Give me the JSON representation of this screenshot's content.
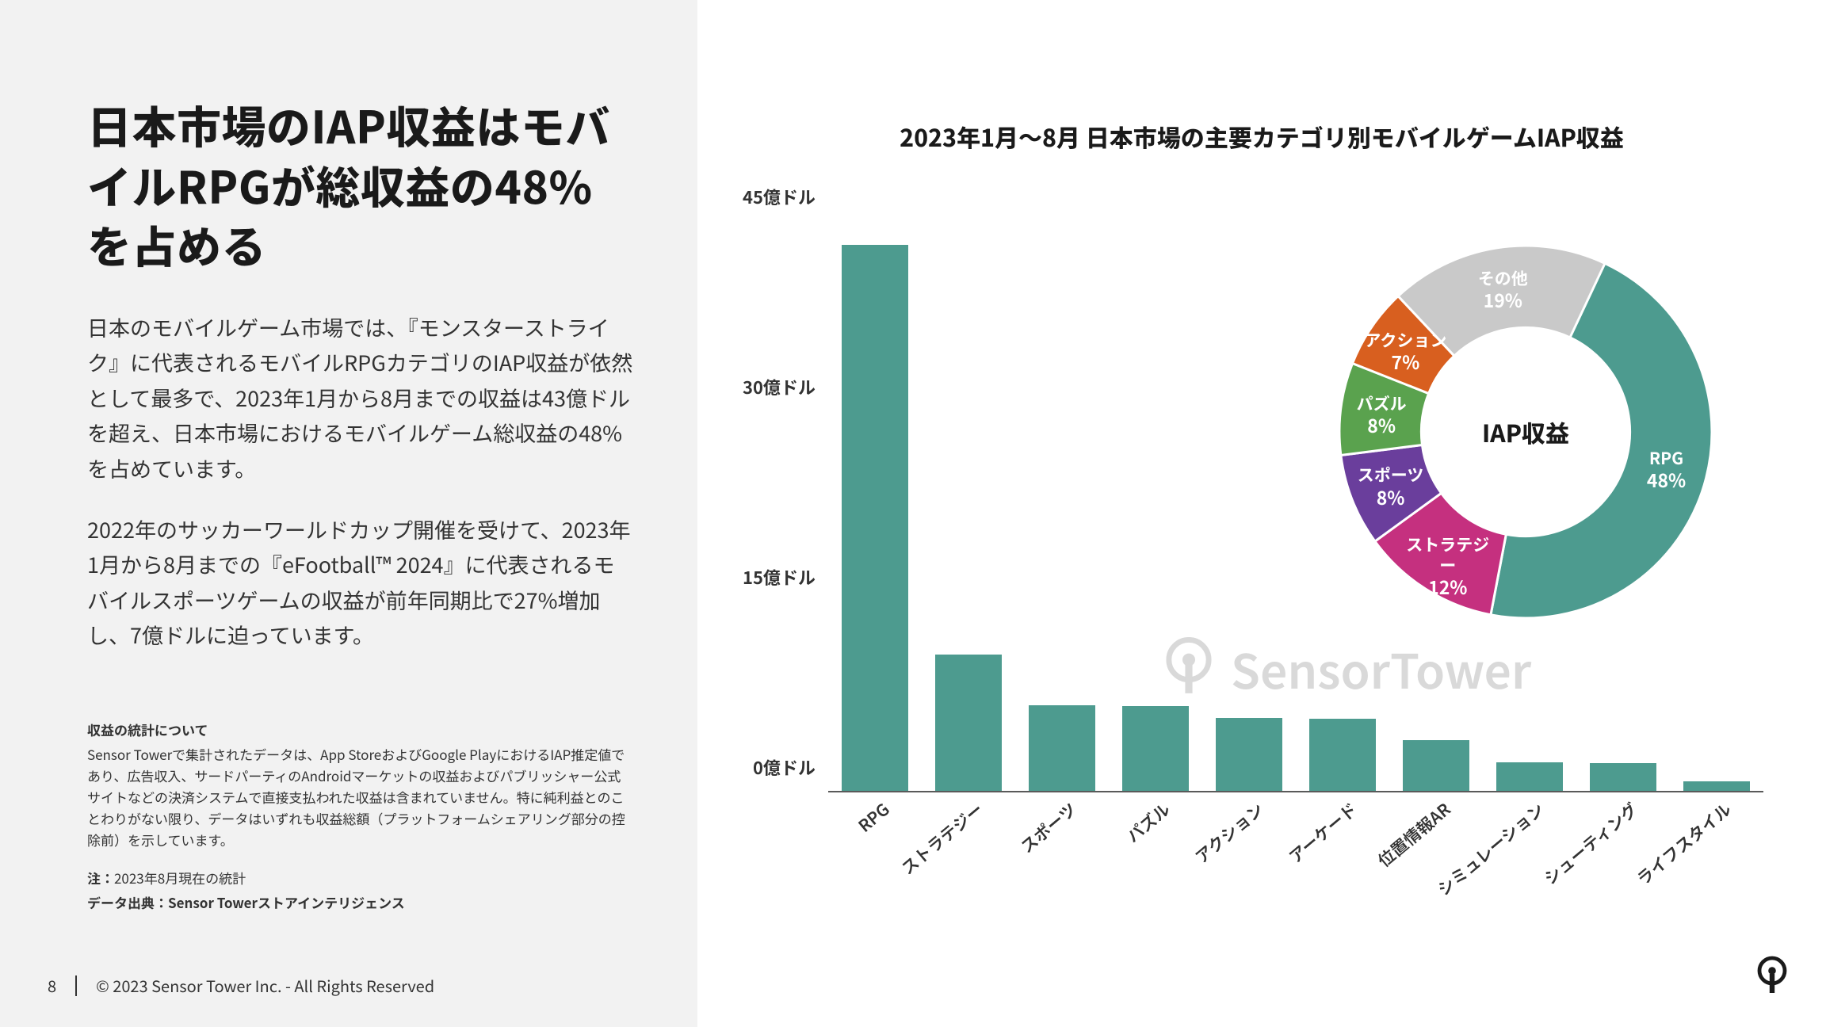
{
  "page": {
    "number": "8",
    "copyright": "© 2023 Sensor Tower Inc. - All Rights Reserved"
  },
  "left": {
    "title": "日本市場のIAP収益はモバイルRPGが総収益の48%を占める",
    "para1": "日本のモバイルゲーム市場では、『モンスターストライク』に代表されるモバイルRPGカテゴリのIAP収益が依然として最多で、2023年1月から8月までの収益は43億ドルを超え、日本市場におけるモバイルゲーム総収益の48%を占めています。",
    "para2": "2022年のサッカーワールドカップ開催を受けて、2023年1月から8月までの『eFootball™ 2024』に代表されるモバイルスポーツゲームの収益が前年同期比で27%増加し、7億ドルに迫っています。",
    "notes_title": "収益の統計について",
    "notes_body": "Sensor Towerで集計されたデータは、App StoreおよびGoogle PlayにおけるIAP推定値であり、広告収入、サードパーティのAndroidマーケットの収益およびパブリッシャー公式サイトなどの決済システムで直接支払われた収益は含まれていません。特に純利益とのことわりがない限り、データはいずれも収益総額（プラットフォームシェアリング部分の控除前）を示しています。",
    "note_line1_label": "注：",
    "note_line1_text": "2023年8月現在の統計",
    "note_line2_label": "データ出典：",
    "note_line2_text": "Sensor Towerストアインテリジェンス"
  },
  "chart": {
    "title": "2023年1月〜8月 日本市場の主要カテゴリ別モバイルゲームIAP収益",
    "watermark_text": "SensorTower",
    "y_axis": {
      "max": 45,
      "ticks": [
        0,
        15,
        30,
        45
      ],
      "labels": [
        "0億ドル",
        "15億ドル",
        "30億ドル",
        "45億ドル"
      ]
    },
    "bar_color": "#4d9b8f",
    "axis_color": "#5a5a5a",
    "bars": [
      {
        "label": "RPG",
        "value": 43.2
      },
      {
        "label": "ストラテジー",
        "value": 10.9
      },
      {
        "label": "スポーツ",
        "value": 6.9
      },
      {
        "label": "パズル",
        "value": 6.8
      },
      {
        "label": "アクション",
        "value": 5.9
      },
      {
        "label": "アーケード",
        "value": 5.8
      },
      {
        "label": "位置情報AR",
        "value": 4.1
      },
      {
        "label": "シミュレーション",
        "value": 2.4
      },
      {
        "label": "シューティング",
        "value": 2.3
      },
      {
        "label": "ライフスタイル",
        "value": 0.9
      }
    ]
  },
  "donut": {
    "center_label": "IAP収益",
    "inner_radius_ratio": 0.56,
    "slices": [
      {
        "label": "RPG",
        "pct": 48,
        "color": "#4d9b8f"
      },
      {
        "label": "ストラテジー",
        "pct": 12,
        "color": "#c5307f"
      },
      {
        "label": "スポーツ",
        "pct": 8,
        "color": "#6a3e9c"
      },
      {
        "label": "パズル",
        "pct": 8,
        "color": "#5aa24e"
      },
      {
        "label": "アクション",
        "pct": 7,
        "color": "#d85f1f"
      },
      {
        "label": "その他",
        "pct": 19,
        "color": "#c9c9c9"
      }
    ],
    "start_angle_deg": -72
  },
  "colors": {
    "left_bg": "#f2f2f2",
    "text_primary": "#1a1a1a",
    "text_body": "#333333",
    "watermark": "#c9c9c9"
  }
}
